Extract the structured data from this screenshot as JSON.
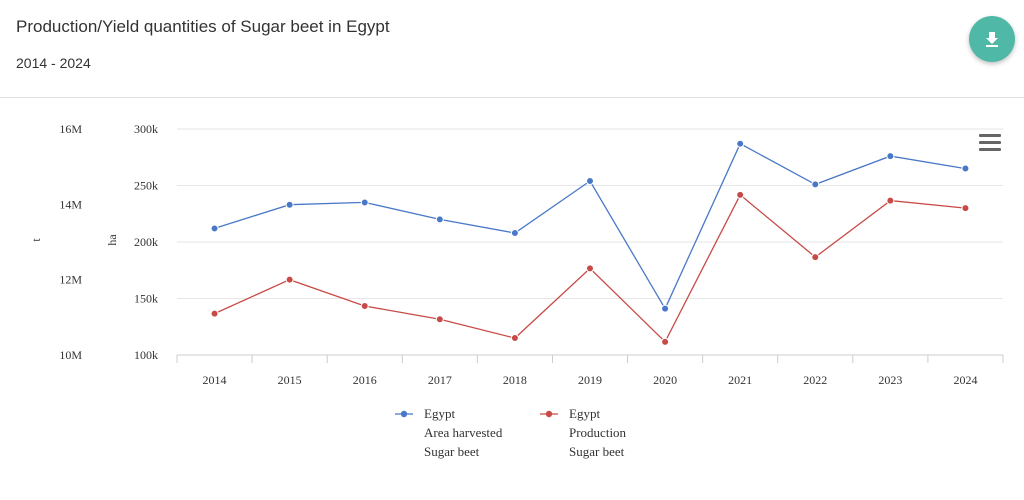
{
  "header": {
    "title": "Production/Yield quantities of Sugar beet in Egypt",
    "subtitle": "2014 - 2024",
    "download_icon": "download-icon"
  },
  "menu": {
    "icon": "hamburger-menu-icon"
  },
  "chart_data": {
    "type": "line",
    "categories": [
      "2014",
      "2015",
      "2016",
      "2017",
      "2018",
      "2019",
      "2020",
      "2021",
      "2022",
      "2023",
      "2024"
    ],
    "left_axis": {
      "label": "t",
      "ticks": [
        "10M",
        "12M",
        "14M",
        "16M"
      ],
      "ylim": [
        10000000,
        16000000
      ]
    },
    "right_axis": {
      "label": "ha",
      "ticks": [
        "100k",
        "150k",
        "200k",
        "250k",
        "300k"
      ],
      "ylim": [
        100000,
        300000
      ]
    },
    "grid": true,
    "legend_placement": "bottom",
    "series": [
      {
        "name": "Egypt Area harvested Sugar beet",
        "label_lines": [
          "Egypt",
          "Area harvested",
          "Sugar beet"
        ],
        "axis": "ha",
        "color": "#4a78c8",
        "values": [
          212000,
          233000,
          235000,
          220000,
          208000,
          254000,
          141000,
          287000,
          251000,
          276000,
          265000
        ]
      },
      {
        "name": "Egypt Production Sugar beet",
        "label_lines": [
          "Egypt",
          "Production",
          "Sugar beet"
        ],
        "axis": "t",
        "color": "#c84a46",
        "values": [
          11100000,
          12000000,
          11300000,
          10950000,
          10450000,
          12300000,
          10350000,
          14250000,
          12600000,
          14100000,
          13900000
        ]
      }
    ]
  }
}
